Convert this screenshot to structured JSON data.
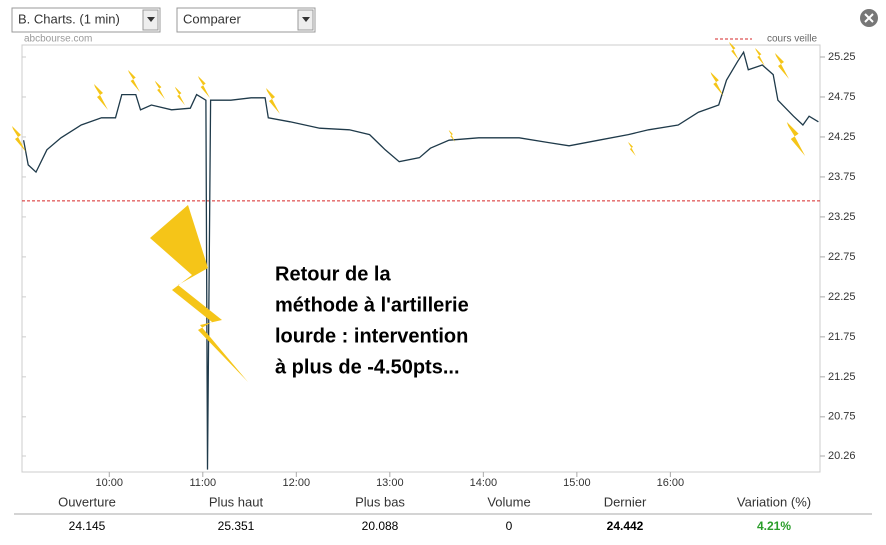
{
  "toolbar": {
    "period": "B. Charts. (1 min)",
    "compare": "Comparer"
  },
  "chart_data": {
    "type": "line",
    "watermark": "abcbourse.com",
    "x": [
      545,
      548,
      553,
      560,
      569,
      582,
      595,
      604,
      608,
      617,
      620,
      627,
      640,
      652,
      656,
      662,
      663,
      665,
      678,
      691,
      700,
      702,
      716,
      735,
      754,
      767,
      777,
      786,
      799,
      806,
      818,
      837,
      863,
      882,
      895,
      914,
      933,
      946,
      965,
      978,
      991,
      996,
      1003,
      1007,
      1010,
      1019,
      1026,
      1029,
      1039,
      1045,
      1049,
      1055
    ],
    "series": [
      {
        "name": "B. Charts.",
        "color": "#1f3a4a",
        "values": [
          24.21,
          23.9,
          23.81,
          24.09,
          24.24,
          24.4,
          24.49,
          24.49,
          24.78,
          24.78,
          24.59,
          24.65,
          24.59,
          24.61,
          24.78,
          24.71,
          20.09,
          24.71,
          24.71,
          24.74,
          24.74,
          24.49,
          24.44,
          24.36,
          24.34,
          24.28,
          24.09,
          23.94,
          23.99,
          24.11,
          24.21,
          24.24,
          24.24,
          24.18,
          24.14,
          24.21,
          24.28,
          24.34,
          24.4,
          24.56,
          24.65,
          24.96,
          25.19,
          25.31,
          25.09,
          25.15,
          25.03,
          24.71,
          24.51,
          24.4,
          24.51,
          24.44
        ]
      }
    ],
    "xlim": [
      544,
      1056
    ],
    "xticks": [
      {
        "value": 600,
        "label": "10:00"
      },
      {
        "value": 660,
        "label": "11:00"
      },
      {
        "value": 720,
        "label": "12:00"
      },
      {
        "value": 780,
        "label": "13:00"
      },
      {
        "value": 840,
        "label": "14:00"
      },
      {
        "value": 900,
        "label": "15:00"
      },
      {
        "value": 960,
        "label": "16:00"
      }
    ],
    "ylim": [
      20.06,
      25.4
    ],
    "yticks": [
      25.25,
      24.75,
      24.25,
      23.75,
      23.25,
      22.75,
      22.25,
      21.75,
      21.25,
      20.75,
      20.26
    ],
    "reference": {
      "name": "cours veille",
      "value": 23.45,
      "color": "#d62728"
    },
    "annotation": [
      "Retour de la",
      "méthode à l'artillerie",
      "lourde : intervention",
      "à plus de -4.50pts..."
    ]
  },
  "stats": {
    "headers": [
      "Ouverture",
      "Plus haut",
      "Plus bas",
      "Volume",
      "Dernier",
      "Variation (%)"
    ],
    "values": [
      24.145,
      25.351,
      20.088,
      0,
      24.442,
      "4.21%"
    ]
  }
}
